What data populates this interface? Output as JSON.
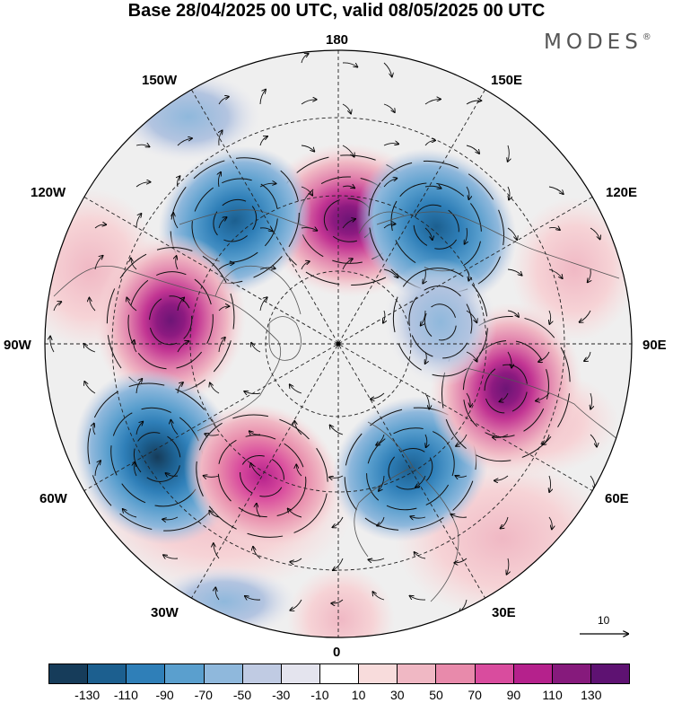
{
  "title": "Base 28/04/2025 00 UTC, valid 08/05/2025 00 UTC",
  "brand": "MODES",
  "brand_mark": "®",
  "longitude_labels": {
    "top": "180",
    "top_left": "150W",
    "top_right": "150E",
    "upper_left": "120W",
    "upper_right": "120E",
    "left": "90W",
    "right": "90E",
    "lower_left": "60W",
    "lower_right": "60E",
    "bottom_left": "30W",
    "bottom_right": "30E",
    "bottom": "0"
  },
  "vector_scale_label": "10",
  "colorbar": {
    "levels": [
      "-130",
      "-110",
      "-90",
      "-70",
      "-50",
      "-30",
      "-10",
      "10",
      "30",
      "50",
      "70",
      "90",
      "110",
      "130"
    ],
    "colors": [
      "#163c5a",
      "#1c5f8f",
      "#2f7fb8",
      "#5a9fce",
      "#8fb8dc",
      "#c0cbe3",
      "#e4e4ee",
      "#ffffff",
      "#f8dcdc",
      "#f0b8c4",
      "#e88aab",
      "#d94c9e",
      "#b5218c",
      "#861a7c",
      "#5e1272"
    ]
  },
  "anomalies": [
    {
      "name": "positive-center-near-180",
      "lon": 175,
      "lat": 57,
      "value": 120
    },
    {
      "name": "negative-center-near-150e",
      "lon": 140,
      "lat": 50,
      "value": -110
    },
    {
      "name": "negative-center-near-150w",
      "lon": -140,
      "lat": 48,
      "value": -100
    },
    {
      "name": "positive-center-near-100w",
      "lon": -98,
      "lat": 46,
      "value": 115
    },
    {
      "name": "negative-center-near-60w",
      "lon": -58,
      "lat": 36,
      "value": -125
    },
    {
      "name": "positive-center-near-30w",
      "lon": -30,
      "lat": 50,
      "value": 100
    },
    {
      "name": "negative-center-near-30e",
      "lon": 30,
      "lat": 52,
      "value": -100
    },
    {
      "name": "positive-center-near-75e",
      "lon": 75,
      "lat": 45,
      "value": 115
    },
    {
      "name": "negative-center-near-100e",
      "lon": 102,
      "lat": 62,
      "value": -60
    }
  ]
}
